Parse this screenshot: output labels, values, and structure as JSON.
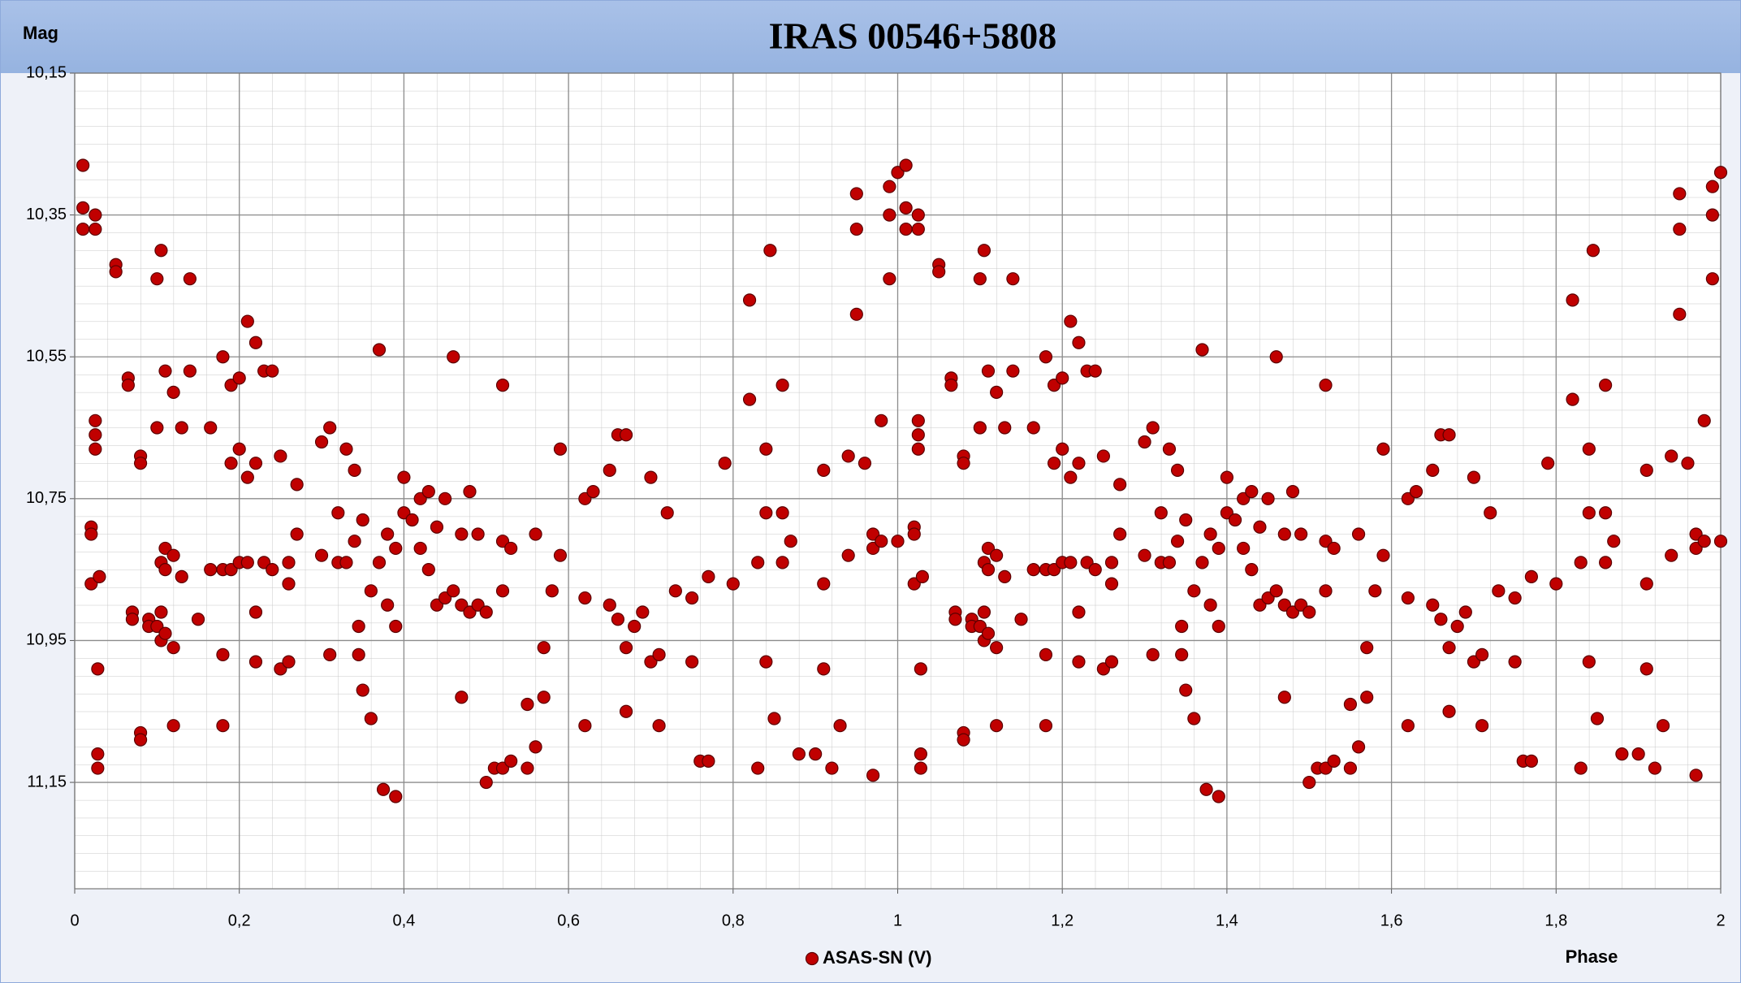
{
  "chart_data": {
    "type": "scatter",
    "title": "IRAS 00546+5808",
    "x_label": "Phase",
    "y_label": "Mag",
    "xlim": [
      0,
      2
    ],
    "xticks": [
      0,
      {
        "value": 0.2,
        "label": "0,2"
      },
      {
        "value": 0.4,
        "label": "0,4"
      },
      {
        "value": 0.6,
        "label": "0,6"
      },
      {
        "value": 0.8,
        "label": "0,8"
      },
      1,
      {
        "value": 1.2,
        "label": "1,2"
      },
      {
        "value": 1.4,
        "label": "1,4"
      },
      {
        "value": 1.6,
        "label": "1,6"
      },
      {
        "value": 1.8,
        "label": "1,8"
      },
      2
    ],
    "ylim": [
      10.15,
      11.3
    ],
    "y_inverted": true,
    "yticks": [
      {
        "value": 10.15,
        "label": "10,15"
      },
      {
        "value": 10.35,
        "label": "10,35"
      },
      {
        "value": 10.55,
        "label": "10,55"
      },
      {
        "value": 10.75,
        "label": "10,75"
      },
      {
        "value": 10.95,
        "label": "10,95"
      },
      {
        "value": 11.15,
        "label": "11,15"
      }
    ],
    "grid": true,
    "legend": "bottom",
    "x": [
      0.01,
      0.01,
      0.01,
      0.02,
      0.02,
      0.02,
      0.025,
      0.025,
      0.025,
      0.025,
      0.025,
      0.028,
      0.028,
      0.028,
      0.03,
      0.05,
      0.05,
      0.065,
      0.065,
      0.07,
      0.07,
      0.08,
      0.08,
      0.08,
      0.08,
      0.09,
      0.09,
      0.1,
      0.1,
      0.1,
      0.105,
      0.105,
      0.105,
      0.105,
      0.11,
      0.11,
      0.11,
      0.11,
      0.12,
      0.12,
      0.12,
      0.12,
      0.13,
      0.13,
      0.14,
      0.14,
      0.15,
      0.165,
      0.165,
      0.18,
      0.18,
      0.18,
      0.18,
      0.19,
      0.19,
      0.19,
      0.2,
      0.2,
      0.2,
      0.21,
      0.21,
      0.21,
      0.22,
      0.22,
      0.22,
      0.22,
      0.23,
      0.23,
      0.24,
      0.24,
      0.25,
      0.25,
      0.26,
      0.26,
      0.26,
      0.27,
      0.27,
      0.3,
      0.3,
      0.31,
      0.31,
      0.32,
      0.32,
      0.33,
      0.33,
      0.34,
      0.34,
      0.345,
      0.345,
      0.35,
      0.35,
      0.36,
      0.36,
      0.37,
      0.37,
      0.375,
      0.38,
      0.38,
      0.39,
      0.39,
      0.39,
      0.4,
      0.4,
      0.41,
      0.42,
      0.42,
      0.43,
      0.43,
      0.44,
      0.44,
      0.45,
      0.45,
      0.46,
      0.46,
      0.47,
      0.47,
      0.47,
      0.48,
      0.48,
      0.49,
      0.49,
      0.5,
      0.5,
      0.51,
      0.52,
      0.52,
      0.52,
      0.52,
      0.53,
      0.53,
      0.55,
      0.55,
      0.56,
      0.56,
      0.57,
      0.57,
      0.58,
      0.59,
      0.59,
      0.62,
      0.62,
      0.62,
      0.63,
      0.65,
      0.65,
      0.66,
      0.66,
      0.67,
      0.67,
      0.67,
      0.68,
      0.69,
      0.7,
      0.7,
      0.71,
      0.71,
      0.72,
      0.73,
      0.75,
      0.75,
      0.76,
      0.77,
      0.77,
      0.79,
      0.8,
      0.82,
      0.82,
      0.83,
      0.83,
      0.84,
      0.84,
      0.84,
      0.845,
      0.85,
      0.86,
      0.86,
      0.86,
      0.87,
      0.88,
      0.9,
      0.91,
      0.91,
      0.91,
      0.92,
      0.93,
      0.94,
      0.94,
      0.95,
      0.95,
      0.95,
      0.96,
      0.97,
      0.97,
      0.97,
      0.98,
      0.98,
      0.99,
      0.99,
      0.99,
      1.0,
      1.0,
      1.01,
      1.01,
      1.01,
      1.02,
      1.02,
      1.02,
      1.025,
      1.025,
      1.025,
      1.025,
      1.025,
      1.028,
      1.028,
      1.028,
      1.03,
      1.05,
      1.05,
      1.065,
      1.065,
      1.07,
      1.07,
      1.08,
      1.08,
      1.08,
      1.08,
      1.09,
      1.09,
      1.1,
      1.1,
      1.1,
      1.105,
      1.105,
      1.105,
      1.105,
      1.11,
      1.11,
      1.11,
      1.11,
      1.12,
      1.12,
      1.12,
      1.12,
      1.13,
      1.13,
      1.14,
      1.14,
      1.15,
      1.165,
      1.165,
      1.18,
      1.18,
      1.18,
      1.18,
      1.19,
      1.19,
      1.19,
      1.2,
      1.2,
      1.2,
      1.21,
      1.21,
      1.21,
      1.22,
      1.22,
      1.22,
      1.22,
      1.23,
      1.23,
      1.24,
      1.24,
      1.25,
      1.25,
      1.26,
      1.26,
      1.26,
      1.27,
      1.27,
      1.3,
      1.3,
      1.31,
      1.31,
      1.32,
      1.32,
      1.33,
      1.33,
      1.34,
      1.34,
      1.345,
      1.345,
      1.35,
      1.35,
      1.36,
      1.36,
      1.37,
      1.37,
      1.375,
      1.38,
      1.38,
      1.39,
      1.39,
      1.39,
      1.4,
      1.4,
      1.41,
      1.42,
      1.42,
      1.43,
      1.43,
      1.44,
      1.44,
      1.45,
      1.45,
      1.46,
      1.46,
      1.47,
      1.47,
      1.47,
      1.48,
      1.48,
      1.49,
      1.49,
      1.5,
      1.5,
      1.51,
      1.52,
      1.52,
      1.52,
      1.52,
      1.53,
      1.53,
      1.55,
      1.55,
      1.56,
      1.56,
      1.57,
      1.57,
      1.58,
      1.59,
      1.59,
      1.62,
      1.62,
      1.62,
      1.63,
      1.65,
      1.65,
      1.66,
      1.66,
      1.67,
      1.67,
      1.67,
      1.68,
      1.69,
      1.7,
      1.7,
      1.71,
      1.71,
      1.72,
      1.73,
      1.75,
      1.75,
      1.76,
      1.77,
      1.77,
      1.79,
      1.8,
      1.82,
      1.82,
      1.83,
      1.83,
      1.84,
      1.84,
      1.84,
      1.845,
      1.85,
      1.86,
      1.86,
      1.86,
      1.87,
      1.88,
      1.9,
      1.91,
      1.91,
      1.91,
      1.92,
      1.93,
      1.94,
      1.94,
      1.95,
      1.95,
      1.95,
      1.96,
      1.97,
      1.97,
      1.97,
      1.98,
      1.98,
      1.99,
      1.99,
      1.99,
      2.0,
      2.0
    ],
    "series": [
      {
        "name": "ASAS-SN (V)",
        "color": "#c00000",
        "values": [
          10.28,
          10.34,
          10.37,
          10.79,
          10.8,
          10.87,
          10.35,
          10.37,
          10.64,
          10.66,
          10.68,
          10.99,
          11.11,
          11.13,
          10.86,
          10.42,
          10.43,
          10.58,
          10.59,
          10.91,
          10.92,
          10.69,
          10.7,
          11.08,
          11.09,
          10.92,
          10.93,
          10.93,
          10.65,
          10.44,
          10.4,
          10.84,
          10.91,
          10.95,
          10.57,
          10.82,
          10.85,
          10.94,
          10.83,
          10.6,
          10.96,
          11.07,
          10.86,
          10.65,
          10.57,
          10.44,
          10.92,
          10.85,
          10.65,
          10.85,
          10.97,
          11.07,
          10.55,
          10.59,
          10.7,
          10.85,
          10.58,
          10.68,
          10.84,
          10.5,
          10.84,
          10.72,
          10.7,
          10.53,
          10.91,
          10.98,
          10.57,
          10.84,
          10.85,
          10.57,
          10.69,
          10.99,
          10.87,
          10.84,
          10.98,
          10.73,
          10.8,
          10.67,
          10.83,
          10.65,
          10.97,
          10.77,
          10.84,
          10.68,
          10.84,
          10.71,
          10.81,
          10.93,
          10.97,
          10.78,
          11.02,
          11.06,
          10.88,
          10.54,
          10.84,
          11.16,
          10.8,
          10.9,
          10.82,
          10.93,
          11.17,
          10.72,
          10.77,
          10.78,
          10.82,
          10.75,
          10.74,
          10.85,
          10.79,
          10.9,
          10.75,
          10.89,
          10.55,
          10.88,
          11.03,
          10.8,
          10.9,
          10.74,
          10.91,
          10.8,
          10.9,
          10.91,
          11.15,
          11.13,
          10.59,
          10.81,
          10.88,
          11.13,
          10.82,
          11.12,
          11.04,
          11.13,
          10.8,
          11.1,
          10.96,
          11.03,
          10.88,
          10.68,
          10.83,
          10.75,
          11.07,
          10.89,
          10.74,
          10.71,
          10.9,
          10.92,
          10.66,
          10.66,
          11.05,
          10.96,
          10.93,
          10.91,
          10.98,
          10.72,
          10.97,
          11.07,
          10.77,
          10.88,
          10.98,
          10.89,
          11.12,
          10.86,
          11.12,
          10.7,
          10.87,
          10.47,
          10.61,
          10.84,
          11.13,
          10.98,
          10.68,
          10.77,
          10.4,
          11.06,
          10.77,
          10.84,
          10.59,
          10.81,
          11.11,
          11.11,
          10.99,
          10.87,
          10.71,
          11.13,
          11.07,
          10.69,
          10.83,
          10.32,
          10.37,
          10.49,
          10.7,
          10.82,
          11.14,
          10.8,
          10.64,
          10.81,
          10.31,
          10.35,
          10.44,
          10.29,
          10.81,
          10.28,
          10.34,
          10.37,
          10.79,
          10.8,
          10.87,
          10.35,
          10.37,
          10.64,
          10.66,
          10.68,
          10.99,
          11.11,
          11.13,
          10.86,
          10.42,
          10.43,
          10.58,
          10.59,
          10.91,
          10.92,
          10.69,
          10.7,
          11.08,
          11.09,
          10.92,
          10.93,
          10.93,
          10.65,
          10.44,
          10.4,
          10.84,
          10.91,
          10.95,
          10.57,
          10.82,
          10.85,
          10.94,
          10.83,
          10.6,
          10.96,
          11.07,
          10.86,
          10.65,
          10.57,
          10.44,
          10.92,
          10.85,
          10.65,
          10.85,
          10.97,
          11.07,
          10.55,
          10.59,
          10.7,
          10.85,
          10.58,
          10.68,
          10.84,
          10.5,
          10.84,
          10.72,
          10.7,
          10.53,
          10.91,
          10.98,
          10.57,
          10.84,
          10.85,
          10.57,
          10.69,
          10.99,
          10.87,
          10.84,
          10.98,
          10.73,
          10.8,
          10.67,
          10.83,
          10.65,
          10.97,
          10.77,
          10.84,
          10.68,
          10.84,
          10.71,
          10.81,
          10.93,
          10.97,
          10.78,
          11.02,
          11.06,
          10.88,
          10.54,
          10.84,
          11.16,
          10.8,
          10.9,
          10.82,
          10.93,
          11.17,
          10.72,
          10.77,
          10.78,
          10.82,
          10.75,
          10.74,
          10.85,
          10.79,
          10.9,
          10.75,
          10.89,
          10.55,
          10.88,
          11.03,
          10.8,
          10.9,
          10.74,
          10.91,
          10.8,
          10.9,
          10.91,
          11.15,
          11.13,
          10.59,
          10.81,
          10.88,
          11.13,
          10.82,
          11.12,
          11.04,
          11.13,
          10.8,
          11.1,
          10.96,
          11.03,
          10.88,
          10.68,
          10.83,
          10.75,
          11.07,
          10.89,
          10.74,
          10.71,
          10.9,
          10.92,
          10.66,
          10.66,
          11.05,
          10.96,
          10.93,
          10.91,
          10.98,
          10.72,
          10.97,
          11.07,
          10.77,
          10.88,
          10.98,
          10.89,
          11.12,
          10.86,
          11.12,
          10.7,
          10.87,
          10.47,
          10.61,
          10.84,
          11.13,
          10.98,
          10.68,
          10.77,
          10.4,
          11.06,
          10.77,
          10.84,
          10.59,
          10.81,
          11.11,
          11.11,
          10.99,
          10.87,
          10.71,
          11.13,
          11.07,
          10.69,
          10.83,
          10.32,
          10.37,
          10.49,
          10.7,
          10.82,
          11.14,
          10.8,
          10.64,
          10.81,
          10.31,
          10.35,
          10.44,
          10.29,
          10.81
        ]
      }
    ]
  }
}
